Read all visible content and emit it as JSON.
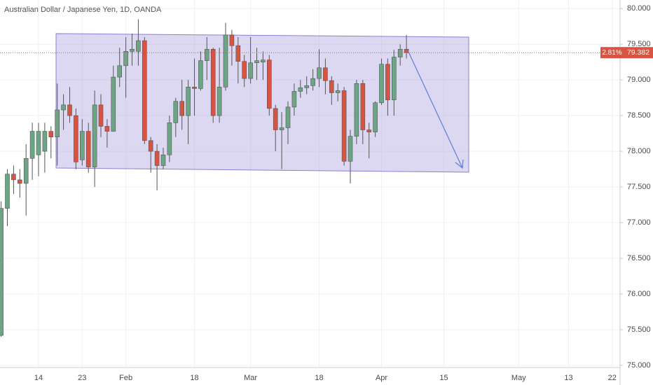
{
  "chart_data": {
    "type": "candlestick",
    "title": "Australian Dollar / Japanese Yen, 1D, OANDA",
    "categories": [
      null,
      null,
      null,
      null,
      null,
      null,
      "14",
      null,
      null,
      null,
      null,
      null,
      null,
      "23",
      null,
      null,
      null,
      null,
      null,
      null,
      "Feb",
      null,
      null,
      null,
      null,
      null,
      null,
      null,
      null,
      null,
      null,
      "18",
      null,
      null,
      null,
      null,
      null,
      null,
      null,
      null,
      "Mar",
      null,
      null,
      null,
      null,
      null,
      null,
      null,
      null,
      null,
      null,
      "18",
      null,
      null,
      null,
      null,
      null,
      null,
      null,
      null,
      null,
      "Apr",
      null,
      null,
      null,
      null,
      null,
      null,
      null,
      null,
      null,
      "15",
      null,
      null,
      null,
      null,
      null,
      null,
      null,
      null,
      null,
      null,
      null,
      "May",
      null,
      null,
      null,
      null,
      null,
      null,
      null,
      "13",
      null,
      null,
      null,
      null,
      null,
      null,
      "22",
      null
    ],
    "open": [
      75.42,
      77.2,
      77.68,
      77.6,
      77.55,
      77.9,
      77.95,
      78.0,
      78.28,
      78.2,
      78.58,
      78.65,
      78.5,
      77.88,
      78.28,
      77.78,
      78.65,
      78.35,
      78.28,
      79.04,
      79.2,
      79.4,
      79.4,
      79.55,
      78.15,
      78.0,
      77.8,
      77.95,
      78.4,
      78.7,
      78.5,
      78.9,
      78.88,
      79.27,
      79.43,
      78.5,
      78.9,
      79.63,
      79.48,
      79.26,
      79.02,
      79.24,
      79.25,
      79.28,
      78.6,
      78.3,
      78.33,
      78.62,
      78.84,
      78.89,
      78.92,
      79.02,
      79.17,
      78.99,
      78.82,
      78.85,
      77.86,
      78.21,
      78.95,
      78.3,
      78.27,
      78.68,
      79.22,
      78.72,
      79.32,
      79.43,
      null,
      null,
      null,
      null,
      null,
      null,
      null,
      null,
      null,
      null,
      null,
      null,
      null,
      null,
      null,
      null,
      null,
      null,
      null,
      null,
      null,
      null,
      null,
      null,
      null,
      null,
      null,
      null,
      null,
      null,
      null,
      null,
      null,
      null
    ],
    "high": [
      77.3,
      77.75,
      77.8,
      77.75,
      78.1,
      78.4,
      78.4,
      78.4,
      78.35,
      78.95,
      78.8,
      78.9,
      78.6,
      78.45,
      78.4,
      78.85,
      78.8,
      78.45,
      79.2,
      79.45,
      79.6,
      79.65,
      79.85,
      79.6,
      78.2,
      78.1,
      78.05,
      78.5,
      78.75,
      79.0,
      79.0,
      79.3,
      79.4,
      79.6,
      79.45,
      79.45,
      79.8,
      79.7,
      79.6,
      79.35,
      79.6,
      79.45,
      79.4,
      79.35,
      78.65,
      78.55,
      78.7,
      78.95,
      79.0,
      79.05,
      79.15,
      79.43,
      79.3,
      79.05,
      78.95,
      78.9,
      78.3,
      79.0,
      79.0,
      78.4,
      78.7,
      79.3,
      79.3,
      79.42,
      79.5,
      79.63,
      null,
      null,
      null,
      null,
      null,
      null,
      null,
      null,
      null,
      null,
      null,
      null,
      null,
      null,
      null,
      null,
      null,
      null,
      null,
      null,
      null,
      null,
      null,
      null,
      null,
      null,
      null,
      null,
      null,
      null,
      null,
      null,
      null,
      null
    ],
    "low": [
      75.4,
      76.95,
      77.4,
      77.35,
      77.1,
      77.6,
      77.65,
      77.7,
      77.9,
      77.8,
      78.3,
      78.4,
      77.75,
      77.8,
      77.7,
      77.5,
      78.2,
      78.05,
      78.28,
      78.9,
      78.75,
      79.2,
      79.2,
      78.1,
      77.7,
      77.45,
      77.75,
      77.85,
      78.2,
      78.3,
      78.1,
      78.5,
      78.85,
      79.0,
      78.4,
      78.4,
      78.85,
      79.2,
      78.95,
      78.9,
      78.95,
      79.0,
      79.0,
      78.5,
      78.0,
      77.75,
      78.1,
      78.5,
      78.75,
      78.8,
      78.85,
      78.9,
      78.8,
      78.65,
      78.7,
      77.8,
      77.55,
      78.1,
      78.1,
      77.9,
      78.2,
      78.65,
      78.5,
      78.5,
      79.2,
      79.3,
      null,
      null,
      null,
      null,
      null,
      null,
      null,
      null,
      null,
      null,
      null,
      null,
      null,
      null,
      null,
      null,
      null,
      null,
      null,
      null,
      null,
      null,
      null,
      null,
      null,
      null,
      null,
      null,
      null,
      null,
      null,
      null,
      null,
      null
    ],
    "close": [
      77.2,
      77.68,
      77.6,
      77.55,
      77.9,
      78.28,
      78.28,
      78.28,
      78.2,
      78.58,
      78.65,
      78.5,
      77.85,
      78.28,
      77.78,
      78.65,
      78.35,
      78.28,
      79.04,
      79.2,
      79.4,
      79.43,
      79.55,
      78.15,
      78.0,
      77.8,
      77.95,
      78.4,
      78.7,
      78.5,
      78.9,
      78.88,
      79.27,
      79.43,
      78.5,
      78.9,
      79.63,
      79.48,
      79.26,
      79.02,
      79.24,
      79.27,
      79.28,
      78.6,
      78.3,
      78.33,
      78.62,
      78.84,
      78.89,
      78.92,
      79.02,
      79.17,
      78.99,
      78.82,
      78.85,
      77.86,
      78.21,
      78.95,
      78.3,
      78.27,
      78.68,
      79.22,
      78.72,
      79.32,
      79.43,
      79.382,
      null,
      null,
      null,
      null,
      null,
      null,
      null,
      null,
      null,
      null,
      null,
      null,
      null,
      null,
      null,
      null,
      null,
      null,
      null,
      null,
      null,
      null,
      null,
      null,
      null,
      null,
      null,
      null,
      null,
      null,
      null,
      null,
      null,
      null
    ],
    "up_color": "#6ba583",
    "down_color": "#d75442",
    "ylim": [
      74.97,
      80.12
    ],
    "yticks": [
      {
        "value": 75,
        "label": "75.000"
      },
      {
        "value": 75.5,
        "label": "75.500"
      },
      {
        "value": 76,
        "label": "76.000"
      },
      {
        "value": 76.5,
        "label": "76.500"
      },
      {
        "value": 77,
        "label": "77.000"
      },
      {
        "value": 77.5,
        "label": "77.500"
      },
      {
        "value": 78,
        "label": "78.000"
      },
      {
        "value": 78.5,
        "label": "78.500"
      },
      {
        "value": 79,
        "label": "79.000"
      },
      {
        "value": 79.5,
        "label": "79.500"
      },
      {
        "value": 80,
        "label": "80.000"
      }
    ],
    "grid": true,
    "last_price": 79.382,
    "change": {
      "value": 2.81,
      "label": "2.81%"
    }
  }
}
